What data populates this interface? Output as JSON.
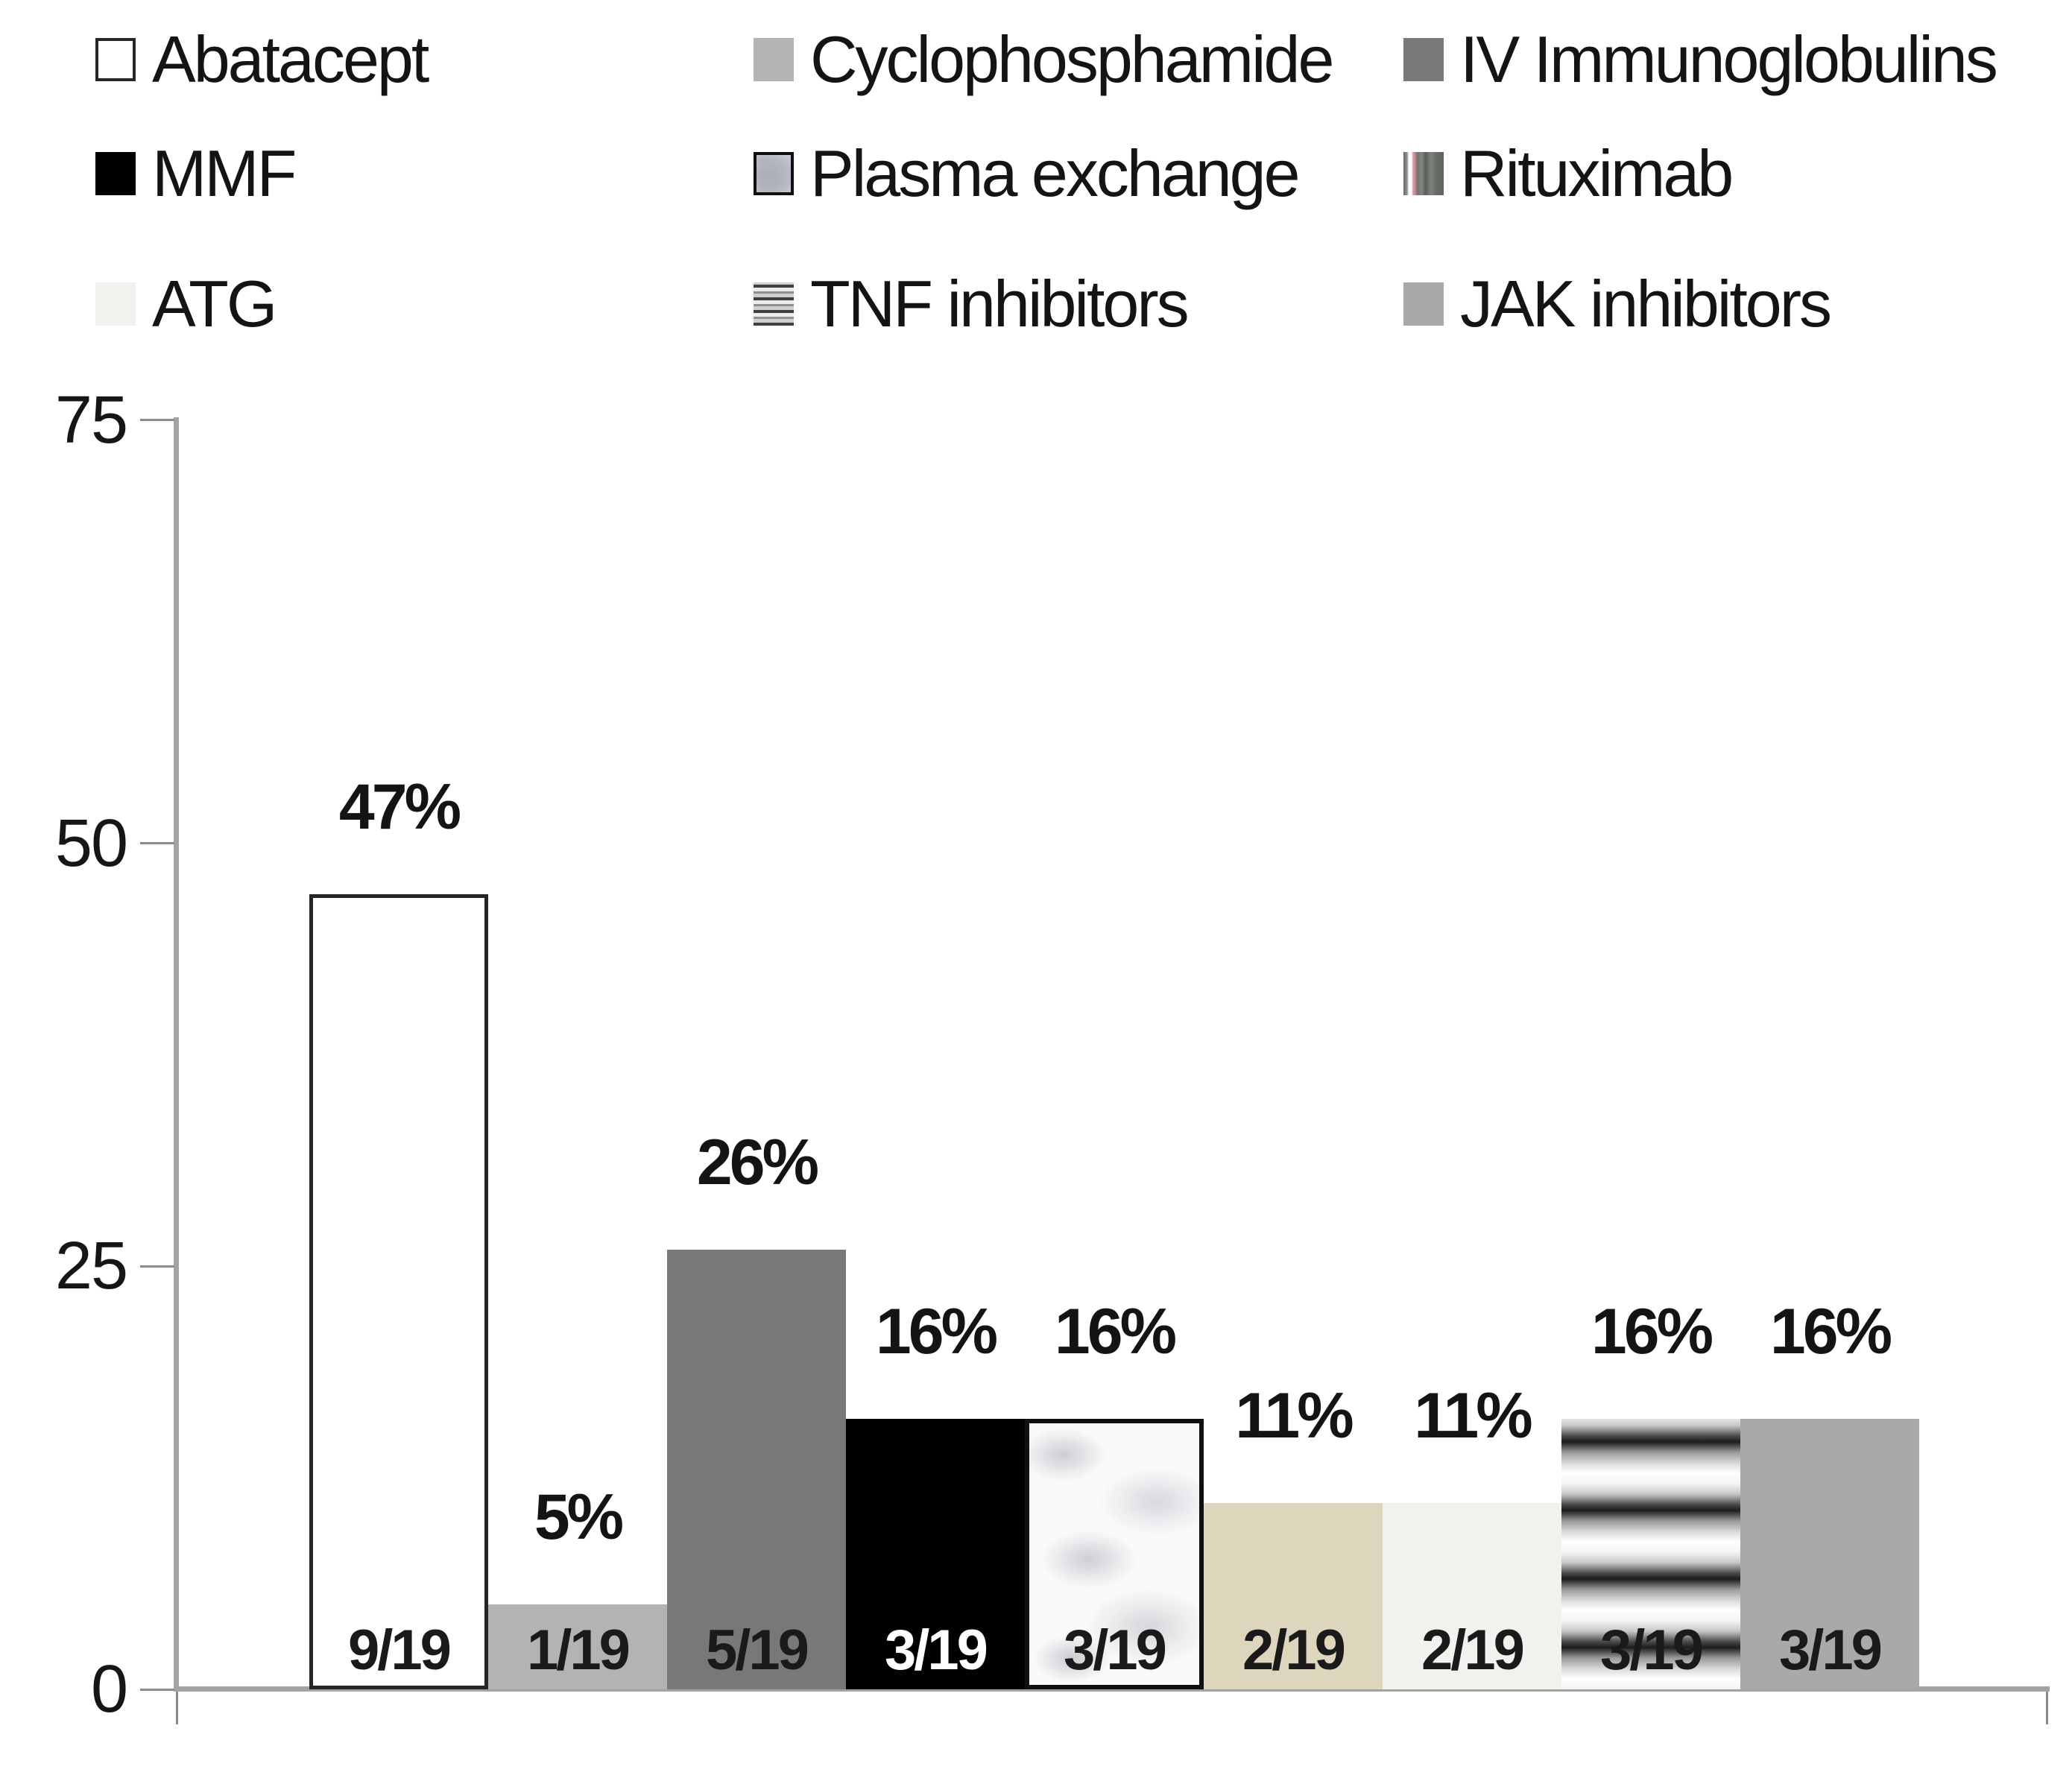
{
  "figure": {
    "background": "#ffffff"
  },
  "legend": {
    "columns": 3,
    "items": [
      {
        "label": "Abatacept",
        "swatch": "abatacept"
      },
      {
        "label": "Cyclophosphamide",
        "swatch": "cyclophosphamide"
      },
      {
        "label": "IV Immunoglobulins",
        "swatch": "ivig"
      },
      {
        "label": "MMF",
        "swatch": "mmf"
      },
      {
        "label": "Plasma exchange",
        "swatch": "plasma"
      },
      {
        "label": "Rituximab",
        "swatch": "rituximab"
      },
      {
        "label": "ATG",
        "swatch": "atg"
      },
      {
        "label": "TNF inhibitors",
        "swatch": "tnf"
      },
      {
        "label": "JAK inhibitors",
        "swatch": "jak"
      }
    ]
  },
  "chart_data": {
    "type": "bar",
    "categories": [
      "Abatacept",
      "Cyclophosphamide",
      "IV Immunoglobulins",
      "MMF",
      "Plasma exchange",
      "Rituximab",
      "ATG",
      "TNF inhibitors",
      "JAK inhibitors"
    ],
    "values": [
      47,
      5,
      26,
      16,
      16,
      11,
      11,
      16,
      16
    ],
    "pct_labels": [
      "47%",
      "5%",
      "26%",
      "16%",
      "16%",
      "11%",
      "11%",
      "16%",
      "16%"
    ],
    "count_labels": [
      "9/19",
      "1/19",
      "5/19",
      "3/19",
      "3/19",
      "2/19",
      "2/19",
      "3/19",
      "3/19"
    ],
    "count_label_colors": [
      "#1a1a1a",
      "#1a1a1a",
      "#1a1a1a",
      "#ffffff",
      "#1a1a1a",
      "#1a1a1a",
      "#1a1a1a",
      "#1a1a1a",
      "#1a1a1a"
    ],
    "pattern_keys": [
      "abatacept",
      "cyclophosphamide",
      "ivig",
      "mmf",
      "plasma",
      "rituximab",
      "atg",
      "tnf",
      "jak"
    ],
    "colors": {
      "abatacept": "#ffffff",
      "cyclophosphamide": "#b3b3b3",
      "ivig": "#787878",
      "mmf": "#000000",
      "plasma": "#fafafa",
      "rituximab": "#ddd6bd",
      "atg": "#f1f1ed",
      "tnf": "#bfbfbf",
      "jak": "#a9a9a9"
    },
    "title": "",
    "xlabel": "",
    "ylabel": "",
    "ylim": [
      0,
      75
    ],
    "yticks": [
      0,
      25,
      50,
      75
    ],
    "grid": false,
    "legend_position": "top",
    "denominator_note": "n/19"
  }
}
